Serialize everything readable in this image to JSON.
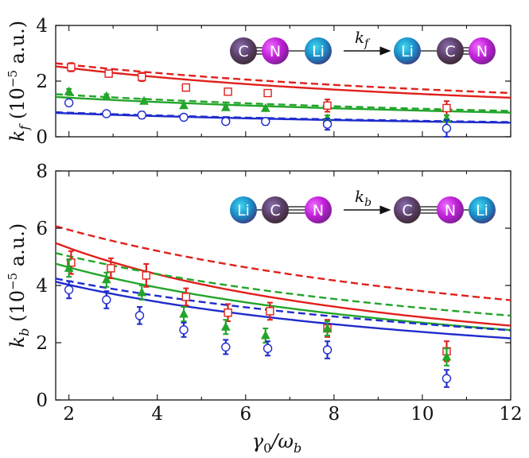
{
  "colors": {
    "red": "#e0201c",
    "green": "#22a52a",
    "blue": "#1f2ccc",
    "axis": "#111111"
  },
  "x_axis": {
    "label_main": "γ",
    "label_sub1": "0",
    "label_sep": "/ω",
    "label_sub2": "b",
    "ticks": [
      2,
      4,
      6,
      8,
      10,
      12
    ]
  },
  "chart_data": [
    {
      "type": "scatter",
      "id": "top",
      "xlim": [
        1.7,
        12
      ],
      "ylim": [
        0,
        4
      ],
      "yticks": [
        0,
        2,
        4
      ],
      "ylabel_k": "k",
      "ylabel_sub": "f",
      "ylabel_rest": " (10",
      "ylabel_exp": "−5",
      "ylabel_unit": " a.u.)",
      "diagram": {
        "atoms": [
          {
            "symbol": "C",
            "fill": "violet"
          },
          {
            "symbol": "N",
            "fill": "magenta"
          },
          {
            "symbol": "Li",
            "fill": "cyan"
          },
          {
            "symbol": "Li",
            "fill": "cyan"
          },
          {
            "symbol": "C",
            "fill": "violet"
          },
          {
            "symbol": "N",
            "fill": "magenta"
          }
        ],
        "arrow_label": "k",
        "arrow_sub": "f"
      },
      "series": [
        {
          "name": "red",
          "marker": "square",
          "x": [
            2.05,
            2.9,
            3.65,
            4.65,
            5.6,
            6.5,
            7.85,
            10.55
          ],
          "y": [
            2.5,
            2.27,
            2.15,
            1.77,
            1.62,
            1.57,
            1.12,
            1.03
          ],
          "err": [
            0.15,
            0.12,
            0.15,
            0.12,
            0.1,
            0.1,
            0.22,
            0.25
          ]
        },
        {
          "name": "green",
          "marker": "triangle",
          "x": [
            2.0,
            2.85,
            3.7,
            4.6,
            5.55,
            6.45,
            7.85,
            10.55
          ],
          "y": [
            1.62,
            1.45,
            1.28,
            1.12,
            1.05,
            1.02,
            0.65,
            0.65
          ],
          "err": [
            0.1,
            0.08,
            0.08,
            0.08,
            0.08,
            0.08,
            0.12,
            0.12
          ]
        },
        {
          "name": "blue",
          "marker": "circle",
          "x": [
            2.0,
            2.85,
            3.65,
            4.6,
            5.55,
            6.45,
            7.85,
            10.55
          ],
          "y": [
            1.22,
            0.83,
            0.78,
            0.7,
            0.55,
            0.55,
            0.45,
            0.3
          ],
          "err": [
            0.1,
            0.1,
            0.12,
            0.1,
            0.1,
            0.12,
            0.2,
            0.3
          ]
        }
      ],
      "curves": [
        {
          "name": "red-solid",
          "color": "red",
          "dash": false,
          "a": 2.53,
          "b": 0.078
        },
        {
          "name": "red-dashed",
          "color": "red",
          "dash": true,
          "a": 2.64,
          "b": 0.066
        },
        {
          "name": "green-solid",
          "color": "green",
          "dash": false,
          "a": 1.43,
          "b": 0.063
        },
        {
          "name": "green-dashed",
          "color": "green",
          "dash": true,
          "a": 1.53,
          "b": 0.063
        },
        {
          "name": "blue-solid",
          "color": "blue",
          "dash": false,
          "a": 0.857,
          "b": 0.068
        },
        {
          "name": "blue-dashed",
          "color": "blue",
          "dash": true,
          "a": 0.88,
          "b": 0.065
        }
      ]
    },
    {
      "type": "scatter",
      "id": "bottom",
      "xlim": [
        1.7,
        12
      ],
      "ylim": [
        0,
        8
      ],
      "yticks": [
        0,
        2,
        4,
        6,
        8
      ],
      "ylabel_k": "k",
      "ylabel_sub": "b",
      "ylabel_rest": " (10",
      "ylabel_exp": "−5",
      "ylabel_unit": " a.u.)",
      "diagram": {
        "atoms": [
          {
            "symbol": "Li",
            "fill": "cyan"
          },
          {
            "symbol": "C",
            "fill": "violet"
          },
          {
            "symbol": "N",
            "fill": "magenta"
          },
          {
            "symbol": "C",
            "fill": "violet"
          },
          {
            "symbol": "N",
            "fill": "magenta"
          },
          {
            "symbol": "Li",
            "fill": "cyan"
          }
        ],
        "arrow_label": "k",
        "arrow_sub": "b"
      },
      "series": [
        {
          "name": "red",
          "marker": "square",
          "x": [
            2.05,
            2.95,
            3.75,
            4.65,
            5.6,
            6.55,
            7.85,
            10.55
          ],
          "y": [
            4.8,
            4.6,
            4.35,
            3.6,
            3.05,
            3.1,
            2.5,
            1.7
          ],
          "err": [
            0.4,
            0.35,
            0.4,
            0.3,
            0.3,
            0.3,
            0.3,
            0.35
          ]
        },
        {
          "name": "green",
          "marker": "triangle",
          "x": [
            2.0,
            2.85,
            3.65,
            4.6,
            5.55,
            6.45,
            7.85,
            10.55
          ],
          "y": [
            4.6,
            4.2,
            3.75,
            3.0,
            2.55,
            2.25,
            2.5,
            1.5
          ],
          "err": [
            0.3,
            0.25,
            0.25,
            0.25,
            0.25,
            0.25,
            0.25,
            0.3
          ]
        },
        {
          "name": "blue",
          "marker": "circle",
          "x": [
            2.0,
            2.85,
            3.6,
            4.6,
            5.55,
            6.5,
            7.85,
            10.55
          ],
          "y": [
            3.85,
            3.5,
            2.95,
            2.45,
            1.85,
            1.8,
            1.75,
            0.75
          ],
          "err": [
            0.3,
            0.3,
            0.3,
            0.25,
            0.25,
            0.25,
            0.3,
            0.3
          ]
        }
      ],
      "curves": [
        {
          "name": "red-solid",
          "color": "red",
          "dash": false,
          "a": 5.48,
          "b": 0.108
        },
        {
          "name": "red-dashed",
          "color": "red",
          "dash": true,
          "a": 6.07,
          "b": 0.072
        },
        {
          "name": "green-solid",
          "color": "green",
          "dash": false,
          "a": 4.76,
          "b": 0.092
        },
        {
          "name": "green-dashed",
          "color": "green",
          "dash": true,
          "a": 5.13,
          "b": 0.072
        },
        {
          "name": "blue-solid",
          "color": "blue",
          "dash": false,
          "a": 4.13,
          "b": 0.089
        },
        {
          "name": "blue-dashed",
          "color": "blue",
          "dash": true,
          "a": 4.24,
          "b": 0.072
        }
      ]
    }
  ]
}
